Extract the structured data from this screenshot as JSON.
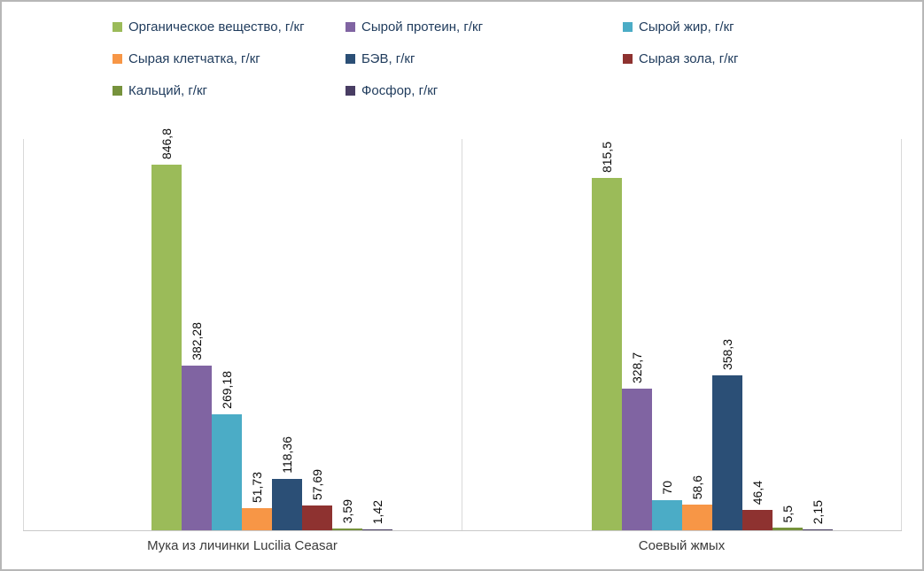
{
  "chart_data": {
    "type": "bar",
    "orientation": "vertical",
    "grid": false,
    "legend_position": "top",
    "value_labels_rotation": 90,
    "ylim": [
      0,
      900
    ],
    "categories": [
      "Мука из личинки Lucilia Ceasar",
      "Соевый жмых"
    ],
    "series": [
      {
        "name": "Органическое вещество, г/кг",
        "color": "#9bbb59",
        "values": [
          846.8,
          815.5
        ],
        "labels": [
          "846,8",
          "815,5"
        ]
      },
      {
        "name": "Сырой протеин, г/кг",
        "color": "#8064a2",
        "values": [
          382.28,
          328.7
        ],
        "labels": [
          "382,28",
          "328,7"
        ]
      },
      {
        "name": "Сырой жир, г/кг",
        "color": "#4bacc6",
        "values": [
          269.18,
          70
        ],
        "labels": [
          "269,18",
          "70"
        ]
      },
      {
        "name": "Сырая клетчатка, г/кг",
        "color": "#f79646",
        "values": [
          51.73,
          58.6
        ],
        "labels": [
          "51,73",
          "58,6"
        ]
      },
      {
        "name": "БЭВ, г/кг",
        "color": "#2b4f76",
        "values": [
          118.36,
          358.3
        ],
        "labels": [
          "118,36",
          "358,3"
        ]
      },
      {
        "name": "Сырая зола, г/кг",
        "color": "#8e3230",
        "values": [
          57.69,
          46.4
        ],
        "labels": [
          "57,69",
          "46,4"
        ]
      },
      {
        "name": "Кальций, г/кг",
        "color": "#76923c",
        "values": [
          3.59,
          5.5
        ],
        "labels": [
          "3,59",
          "5,5"
        ]
      },
      {
        "name": "Фосфор, г/кг",
        "color": "#483d63",
        "values": [
          1.42,
          2.15
        ],
        "labels": [
          "1,42",
          "2,15"
        ]
      }
    ]
  },
  "colors": {
    "border": "#b7b7b7",
    "plot_lines": "#d9d9d9",
    "axis_line": "#c9c9c9",
    "legend_text": "#1f3b5c",
    "category_text": "#3a3a3a",
    "value_label_text": "#0a0a0a"
  }
}
